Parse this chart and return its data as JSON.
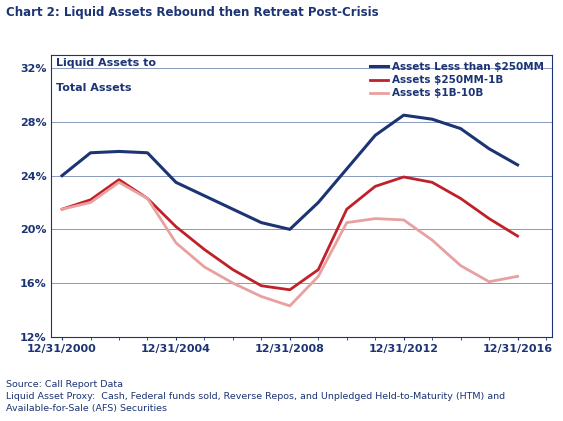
{
  "title": "Chart 2: Liquid Assets Rebound then Retreat Post-Crisis",
  "ylabel_line1": "Liquid Assets to",
  "ylabel_line2": "Total Assets",
  "source_text": "Source: Call Report Data\nLiquid Asset Proxy:  Cash, Federal funds sold, Reverse Repos, and Unpledged Held-to-Maturity (HTM) and\nAvailable-for-Sale (AFS) Securities",
  "x_labels": [
    "12/31/2000",
    "12/31/2004",
    "12/31/2008",
    "12/31/2012",
    "12/31/2016"
  ],
  "x_tick_positions": [
    2000,
    2004,
    2008,
    2012,
    2016
  ],
  "ylim": [
    12,
    33
  ],
  "yticks": [
    12,
    16,
    20,
    24,
    28,
    32
  ],
  "series": [
    {
      "label": "Assets Less than $250MM",
      "color": "#1c3474",
      "linewidth": 2.2,
      "x": [
        2000,
        2001,
        2002,
        2003,
        2004,
        2005,
        2006,
        2007,
        2008,
        2009,
        2010,
        2011,
        2012,
        2013,
        2014,
        2015,
        2016
      ],
      "y": [
        24.0,
        25.7,
        25.8,
        25.7,
        23.5,
        22.5,
        21.5,
        20.5,
        20.0,
        22.0,
        24.5,
        27.0,
        28.5,
        28.2,
        27.5,
        26.0,
        24.8
      ]
    },
    {
      "label": "Assets $250MM-1B",
      "color": "#c0202a",
      "linewidth": 2.0,
      "x": [
        2000,
        2001,
        2002,
        2003,
        2004,
        2005,
        2006,
        2007,
        2008,
        2009,
        2010,
        2011,
        2012,
        2013,
        2014,
        2015,
        2016
      ],
      "y": [
        21.5,
        22.2,
        23.7,
        22.3,
        20.2,
        18.5,
        17.0,
        15.8,
        15.5,
        17.0,
        21.5,
        23.2,
        23.9,
        23.5,
        22.3,
        20.8,
        19.5
      ]
    },
    {
      "label": "Assets $1B-10B",
      "color": "#e8a0a0",
      "linewidth": 2.0,
      "x": [
        2000,
        2001,
        2002,
        2003,
        2004,
        2005,
        2006,
        2007,
        2008,
        2009,
        2010,
        2011,
        2012,
        2013,
        2014,
        2015,
        2016
      ],
      "y": [
        21.5,
        22.0,
        23.5,
        22.3,
        19.0,
        17.2,
        16.0,
        15.0,
        14.3,
        16.5,
        20.5,
        20.8,
        20.7,
        19.2,
        17.3,
        16.1,
        16.5
      ]
    }
  ],
  "title_color": "#1c3474",
  "title_fontsize": 8.5,
  "axis_color": "#1c3474",
  "grid_color": "#8899bb",
  "background_color": "#ffffff",
  "legend_fontsize": 7.5,
  "ylabel_fontsize": 8.0,
  "tick_fontsize": 8.0,
  "source_fontsize": 6.8,
  "box_color": "#1c3474"
}
